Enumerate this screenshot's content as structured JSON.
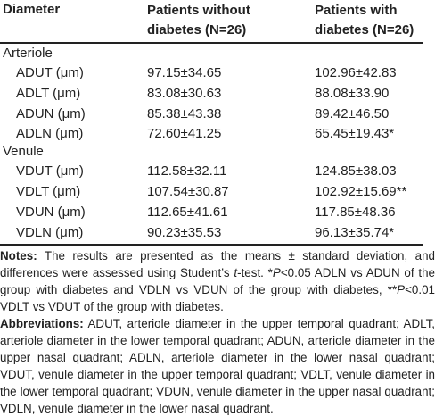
{
  "table": {
    "headers": [
      "Diameter",
      "Patients without diabetes (N=26)",
      "Patients with diabetes (N=26)"
    ],
    "groups": [
      {
        "label": "Arteriole",
        "rows": [
          [
            "ADUT (μm)",
            "97.15±34.65",
            "102.96±42.83"
          ],
          [
            "ADLT (μm)",
            "83.08±30.63",
            "88.08±33.90"
          ],
          [
            "ADUN (μm)",
            "85.38±43.38",
            "89.42±46.50"
          ],
          [
            "ADLN (μm)",
            "72.60±41.25",
            "65.45±19.43*"
          ]
        ]
      },
      {
        "label": "Venule",
        "rows": [
          [
            "VDUT (μm)",
            "112.58±32.11",
            "124.85±38.03"
          ],
          [
            "VDLT (μm)",
            "107.54±30.87",
            "102.92±15.69**"
          ],
          [
            "VDUN (μm)",
            "112.65±41.61",
            "117.85±48.36"
          ],
          [
            "VDLN (μm)",
            "90.23±35.53",
            "96.13±35.74*"
          ]
        ]
      }
    ]
  },
  "notes": {
    "label": "Notes:",
    "segments": [
      " The results are presented as the means ± standard deviation, and differences were assessed using Student’s ",
      "t",
      "-test. *",
      "P",
      "<0.05 ADLN vs ADUN of the group with diabetes and VDLN vs VDUN of the group with diabetes, **",
      "P",
      "<0.01 VDLT vs VDUT of the group with diabetes."
    ]
  },
  "abbreviations": {
    "label": "Abbreviations:",
    "text": " ADUT, arteriole diameter in the upper temporal quadrant; ADLT, arteriole diameter in the lower temporal quadrant; ADUN, arteriole diameter in the upper nasal quadrant; ADLN, arteriole diameter in the lower nasal quadrant; VDUT, venule diameter in the upper temporal quadrant; VDLT, venule diameter in the lower temporal quadrant; VDUN, venule diameter in the upper nasal quadrant; VDLN, venule diameter in the lower nasal quadrant."
  }
}
